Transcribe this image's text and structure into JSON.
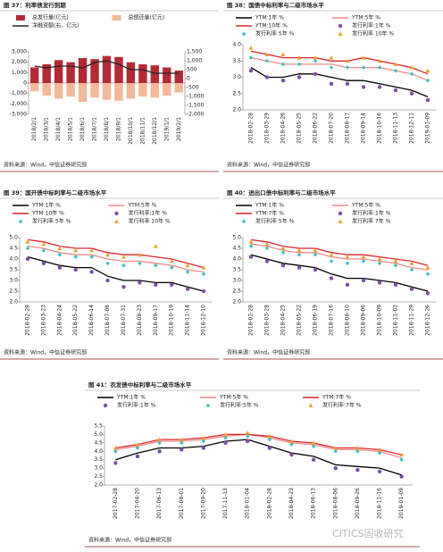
{
  "chart_data": [
    {
      "type": "combo",
      "title": "图 37：利率债发行到期",
      "source": "资料来源：Wind，中信证券研究部",
      "categories": [
        "2018/2/1",
        "2018/3/1",
        "2018/4/1",
        "2018/5/1",
        "2018/6/1",
        "2018/7/1",
        "2018/8/1",
        "2018/9/1",
        "2018/10/1",
        "2018/11/1",
        "2018/12/1",
        "2019/1/1",
        "2019/2/1"
      ],
      "series": [
        {
          "name": "总发行量(亿元)",
          "color": "#b22a35",
          "marker": "bar",
          "values": [
            1500,
            1800,
            2200,
            2000,
            2400,
            2300,
            2600,
            2500,
            2000,
            1800,
            1700,
            1500,
            1200
          ]
        },
        {
          "name": "总偿还量(亿元)",
          "color": "#f2b99a",
          "marker": "bar",
          "values": [
            -800,
            -1200,
            -1500,
            -1300,
            -1800,
            -1400,
            -1600,
            -1700,
            -1500,
            -1300,
            -1400,
            -1200,
            -900
          ]
        },
        {
          "name": "净融资额(右，亿元)",
          "color": "#222222",
          "marker": "line",
          "axis": "y2",
          "values": [
            700,
            600,
            700,
            700,
            600,
            900,
            1000,
            800,
            500,
            500,
            300,
            300,
            300
          ]
        }
      ],
      "ylim": [
        -3000,
        3000
      ],
      "yticks": [
        {
          "value": 3000,
          "label": "3,000"
        },
        {
          "value": 2000,
          "label": "2,000"
        },
        {
          "value": 1000,
          "label": "1,000"
        },
        0,
        {
          "value": -1000,
          "label": "-1,000"
        },
        {
          "value": -2000,
          "label": "-2,000"
        },
        {
          "value": -3000,
          "label": "-3,000"
        }
      ],
      "y2lim": [
        -2000,
        1500
      ],
      "y2ticks": [
        {
          "value": 1500,
          "label": "1,500"
        },
        {
          "value": 1000,
          "label": "1,000"
        },
        500,
        0,
        -500,
        {
          "value": -1000,
          "label": "-1,000"
        },
        {
          "value": -1500,
          "label": "-1,500"
        },
        {
          "value": -2000,
          "label": "-2,000"
        }
      ]
    },
    {
      "type": "line",
      "title": "图 38：国债中标利率与二级市场水平",
      "source": "资料来源：Wind，中信证券研究部",
      "categories": [
        "2018-02-28",
        "2018-03-29",
        "2018-04-26",
        "2018-05-25",
        "2018-06-22",
        "2018-07-20",
        "2018-08-17",
        "2018-09-14",
        "2018-10-16",
        "2018-11-13",
        "2018-12-11",
        "2019-01-09"
      ],
      "series": [
        {
          "name": "YTM:1年 %",
          "color": "#000000",
          "marker": "line",
          "values": [
            3.3,
            3.0,
            3.0,
            3.1,
            3.1,
            3.0,
            2.9,
            2.9,
            2.8,
            2.7,
            2.6,
            2.4
          ]
        },
        {
          "name": "YTM:5年 %",
          "color": "#f08a8a",
          "marker": "line",
          "values": [
            3.6,
            3.5,
            3.4,
            3.4,
            3.4,
            3.4,
            3.3,
            3.3,
            3.3,
            3.2,
            3.1,
            2.9
          ]
        },
        {
          "name": "YTM:10年 %",
          "color": "#d9262c",
          "marker": "line",
          "values": [
            3.8,
            3.7,
            3.6,
            3.6,
            3.6,
            3.5,
            3.5,
            3.6,
            3.5,
            3.4,
            3.3,
            3.1
          ]
        },
        {
          "name": "发行利率:1年 %",
          "color": "#7b4fa8",
          "marker": "circle",
          "values": [
            3.2,
            3.0,
            2.9,
            3.0,
            3.1,
            2.8,
            2.8,
            2.7,
            2.7,
            2.6,
            2.5,
            2.3
          ]
        },
        {
          "name": "发行利率 5年 %",
          "color": "#3fbfbf",
          "marker": "diamond",
          "values": [
            3.6,
            3.5,
            3.4,
            3.4,
            3.5,
            3.3,
            3.3,
            3.3,
            3.3,
            3.2,
            3.1,
            2.9
          ]
        },
        {
          "name": "发行利率 10年 %",
          "color": "#f0a030",
          "marker": "triangle",
          "values": [
            3.9,
            3.7,
            3.7,
            3.6,
            3.6,
            3.6,
            3.5,
            3.6,
            3.5,
            3.4,
            3.3,
            3.2
          ]
        }
      ],
      "ylim": [
        2,
        4
      ],
      "yticks": [
        {
          "value": 4,
          "label": "4.0"
        },
        3.5,
        {
          "value": 3,
          "label": "3.0"
        },
        2.5,
        {
          "value": 2,
          "label": "2.0"
        }
      ]
    },
    {
      "type": "line",
      "title": "图 39：国开债中标利率与二级市场水平",
      "source": "资料来源：Wind，中信证券研究部",
      "categories": [
        "2018-02-28",
        "2018-03-23",
        "2018-04-24",
        "2018-05-22",
        "2018-06-14",
        "2018-07-06",
        "2018-07-31",
        "2018-08-23",
        "2018-09-17",
        "2018-10-19",
        "2018-11-14",
        "2018-12-10"
      ],
      "series": [
        {
          "name": "YTM:1年 %",
          "color": "#000000",
          "marker": "line",
          "values": [
            4.1,
            3.9,
            3.7,
            3.6,
            3.6,
            3.2,
            3.0,
            3.0,
            2.9,
            2.9,
            2.7,
            2.5
          ]
        },
        {
          "name": "YTM:5年 %",
          "color": "#f08a8a",
          "marker": "line",
          "values": [
            4.6,
            4.5,
            4.3,
            4.2,
            4.2,
            4.0,
            3.9,
            3.9,
            3.8,
            3.7,
            3.5,
            3.4
          ]
        },
        {
          "name": "YTM:10年 %",
          "color": "#d9262c",
          "marker": "line",
          "values": [
            4.9,
            4.8,
            4.6,
            4.5,
            4.5,
            4.3,
            4.2,
            4.2,
            4.1,
            4.0,
            3.8,
            3.6
          ]
        },
        {
          "name": "发行利率:1年 %",
          "color": "#7b4fa8",
          "marker": "circle",
          "values": [
            4.0,
            3.8,
            3.6,
            3.5,
            3.4,
            3.0,
            2.7,
            2.9,
            2.8,
            2.8,
            2.6,
            2.5
          ]
        },
        {
          "name": "发行利率 5年 %",
          "color": "#3fbfbf",
          "marker": "diamond",
          "values": [
            4.5,
            4.4,
            4.2,
            4.1,
            4.1,
            3.8,
            3.7,
            3.8,
            3.7,
            3.6,
            3.4,
            3.3
          ]
        },
        {
          "name": "发行利率 10年 %",
          "color": "#f0a030",
          "marker": "triangle",
          "values": [
            4.8,
            4.7,
            4.5,
            4.4,
            4.4,
            4.2,
            4.1,
            4.2,
            4.6,
            3.9,
            3.7,
            3.6
          ]
        }
      ],
      "ylim": [
        2,
        5
      ],
      "yticks": [
        {
          "value": 5,
          "label": "5.0"
        },
        4.5,
        {
          "value": 4,
          "label": "4.0"
        },
        3.5,
        {
          "value": 3,
          "label": "3.0"
        },
        2.5,
        {
          "value": 2,
          "label": "2.0"
        }
      ]
    },
    {
      "type": "line",
      "title": "图 40：进出口债中标利率与二级市场水平",
      "source": "资料来源：Wind，中信证券研究部",
      "categories": [
        "2018-02-28",
        "2018-03-28",
        "2018-04-25",
        "2018-05-22",
        "2018-06-19",
        "2018-07-16",
        "2018-08-10",
        "2018-09-06",
        "2018-10-09",
        "2018-11-02",
        "2018-11-29",
        "2018-12-26"
      ],
      "series": [
        {
          "name": "YTM:1年 %",
          "color": "#000000",
          "marker": "line",
          "values": [
            4.2,
            4.0,
            3.8,
            3.7,
            3.6,
            3.3,
            3.1,
            3.1,
            3.0,
            2.9,
            2.7,
            2.5
          ]
        },
        {
          "name": "YTM:5年 %",
          "color": "#f08a8a",
          "marker": "line",
          "values": [
            4.7,
            4.6,
            4.4,
            4.3,
            4.3,
            4.1,
            4.0,
            4.0,
            3.9,
            3.8,
            3.6,
            3.5
          ]
        },
        {
          "name": "YTM:7年 %",
          "color": "#d9262c",
          "marker": "line",
          "values": [
            4.9,
            4.8,
            4.6,
            4.5,
            4.5,
            4.3,
            4.2,
            4.2,
            4.1,
            4.0,
            3.9,
            3.7
          ]
        },
        {
          "name": "发行利率:1年 %",
          "color": "#7b4fa8",
          "marker": "circle",
          "values": [
            4.1,
            3.9,
            3.7,
            3.6,
            3.5,
            3.1,
            2.8,
            3.0,
            2.9,
            2.8,
            2.6,
            2.4
          ]
        },
        {
          "name": "发行利率 5年 %",
          "color": "#3fbfbf",
          "marker": "diamond",
          "values": [
            4.6,
            4.5,
            4.3,
            4.2,
            4.2,
            3.9,
            3.8,
            3.9,
            3.8,
            3.7,
            3.5,
            3.3
          ]
        },
        {
          "name": "发行利率 7年 %",
          "color": "#f0a030",
          "marker": "triangle",
          "values": [
            4.8,
            4.7,
            4.5,
            4.4,
            4.4,
            4.2,
            4.1,
            4.1,
            4.0,
            3.9,
            3.8,
            3.6
          ]
        }
      ],
      "ylim": [
        2,
        5
      ],
      "yticks": [
        {
          "value": 5,
          "label": "5.0"
        },
        4.5,
        {
          "value": 4,
          "label": "4.0"
        },
        3.5,
        {
          "value": 3,
          "label": "3.0"
        },
        2.5,
        {
          "value": 2,
          "label": "2.0"
        }
      ]
    },
    {
      "type": "line",
      "title": "图 41：农发债中标利率与二级市场水平",
      "source": "资料来源：Wind，中信证券研究部",
      "categories": [
        "2017-02-28",
        "2017-04-20",
        "2017-06-13",
        "2017-08-01",
        "2017-09-20",
        "2017-11-13",
        "2018-01-04",
        "2018-02-28",
        "2018-04-23",
        "2018-06-13",
        "2018-08-06",
        "2018-09-26",
        "2018-11-16",
        "2019-01-09"
      ],
      "series": [
        {
          "name": "YTM:1年 %",
          "color": "#000000",
          "marker": "line",
          "values": [
            3.5,
            3.9,
            4.2,
            4.2,
            4.3,
            4.6,
            4.7,
            4.3,
            3.9,
            3.7,
            3.2,
            3.1,
            3.0,
            2.6
          ]
        },
        {
          "name": "YTM:5年 %",
          "color": "#f08a8a",
          "marker": "line",
          "values": [
            4.1,
            4.3,
            4.6,
            4.6,
            4.7,
            4.9,
            5.0,
            4.8,
            4.5,
            4.4,
            4.1,
            4.1,
            4.0,
            3.6
          ]
        },
        {
          "name": "YTM:7年 %",
          "color": "#d9262c",
          "marker": "line",
          "values": [
            4.2,
            4.4,
            4.7,
            4.7,
            4.8,
            5.0,
            5.0,
            4.9,
            4.6,
            4.5,
            4.2,
            4.2,
            4.1,
            3.8
          ]
        },
        {
          "name": "发行利率:1年 %",
          "color": "#7b4fa8",
          "marker": "circle",
          "values": [
            3.3,
            3.7,
            4.0,
            4.1,
            4.2,
            4.5,
            4.6,
            4.2,
            3.8,
            3.5,
            3.0,
            2.9,
            2.8,
            2.5
          ]
        },
        {
          "name": "发行利率:5年 %",
          "color": "#3fbfbf",
          "marker": "diamond",
          "values": [
            4.0,
            4.2,
            4.5,
            4.5,
            4.6,
            4.8,
            4.9,
            4.7,
            4.4,
            4.3,
            4.0,
            4.0,
            3.9,
            3.5
          ]
        },
        {
          "name": "发行利率:7年 %",
          "color": "#f0a030",
          "marker": "triangle",
          "values": [
            4.2,
            4.4,
            4.7,
            4.7,
            4.8,
            5.0,
            5.1,
            4.9,
            4.6,
            4.5,
            4.2,
            4.2,
            4.1,
            3.8
          ]
        }
      ],
      "ylim": [
        2,
        5.5
      ],
      "yticks": [
        5.5,
        {
          "value": 5,
          "label": "5.0"
        },
        4.5,
        {
          "value": 4,
          "label": "4.0"
        },
        3.5,
        {
          "value": 3,
          "label": "3.0"
        },
        2.5,
        {
          "value": 2,
          "label": "2.0"
        }
      ]
    }
  ],
  "watermark": "CITICS固收研究"
}
